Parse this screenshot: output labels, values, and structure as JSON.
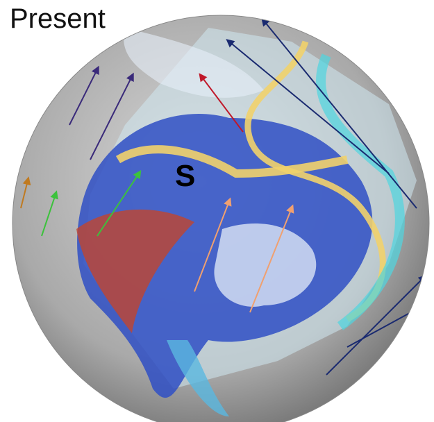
{
  "title": "Present",
  "labels": [
    {
      "text": "S"
    }
  ]
}
